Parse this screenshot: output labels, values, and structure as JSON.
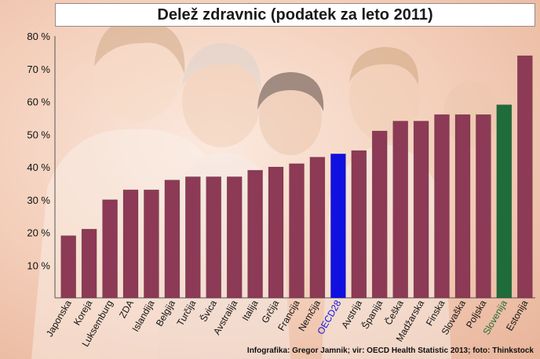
{
  "title": "Delež zdravnic (podatek za leto 2011)",
  "credit": "Infografika: Gregor Jamnik; vir: OECD Health Statistic 2013; foto: Thinkstock",
  "chart_data": {
    "type": "bar",
    "title": "Delež zdravnic (podatek za leto 2011)",
    "categories": [
      "Japonska",
      "Koreja",
      "Luksemburg",
      "ZDA",
      "Islandija",
      "Belgija",
      "Turčija",
      "Švica",
      "Avstralija",
      "Italija",
      "Grčija",
      "Francija",
      "Nemčija",
      "OECD28",
      "Avstrija",
      "Španija",
      "Češka",
      "Madžarska",
      "Finska",
      "Slovaška",
      "Poljska",
      "Slovenija",
      "Estonija"
    ],
    "values": [
      19,
      21,
      30,
      33,
      33,
      36,
      37,
      37,
      37,
      39,
      40,
      41,
      43,
      44,
      45,
      51,
      54,
      54,
      56,
      56,
      56,
      59,
      74
    ],
    "y_ticks": [
      "10 %",
      "20 %",
      "30 %",
      "40 %",
      "50 %",
      "60 %",
      "70 %",
      "80 %"
    ],
    "ylim": [
      0,
      80
    ],
    "grid": false,
    "colors": {
      "default": "#8c3a55",
      "highlight_oecd": "#1010e0",
      "highlight_slovenia": "#1f6b3a",
      "label_default": "#111111",
      "label_oecd": "#1010e0",
      "label_slovenia": "#1f6b3a"
    },
    "highlights": {
      "OECD28": "oecd",
      "Slovenija": "slovenia"
    }
  }
}
